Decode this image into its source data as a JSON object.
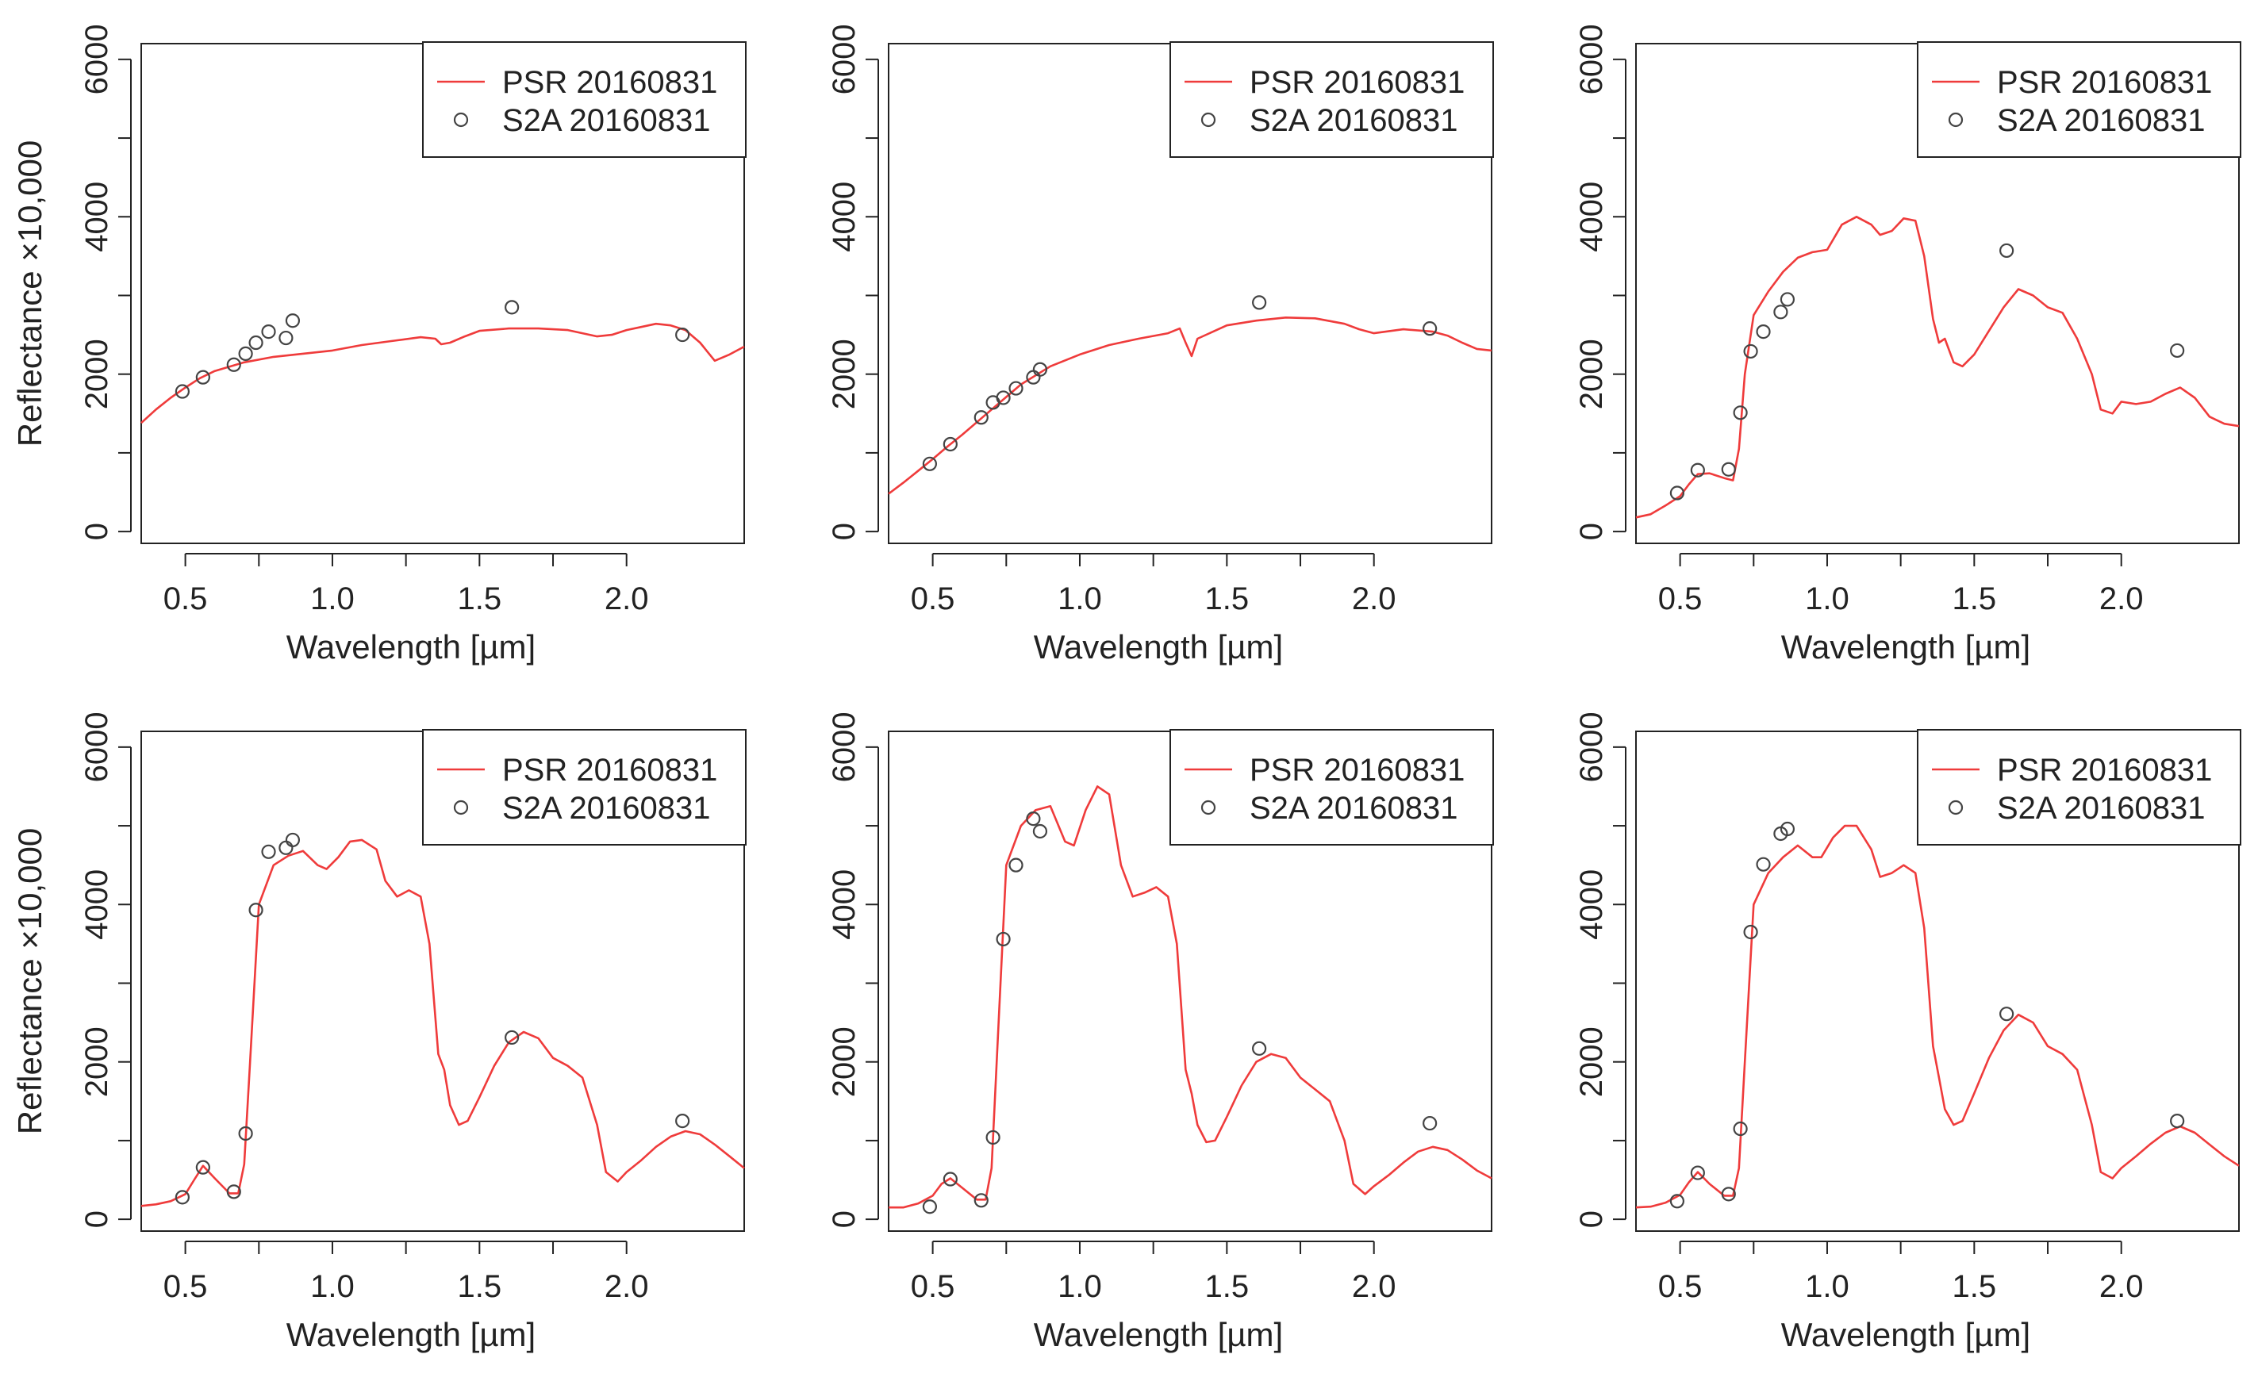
{
  "colors": {
    "psr": "#ef3b3b",
    "s2a": "#444444",
    "axis": "#222222",
    "background": "#ffffff"
  },
  "chart_data": [
    {
      "type": "line",
      "panel": 1,
      "ylabel": "Reflectance ×10,000",
      "xlabel": "Wavelength  [µm]",
      "xticks": [
        "0.5",
        "1.0",
        "1.5",
        "2.0"
      ],
      "yticks": [
        "0",
        "2000",
        "4000",
        "6000"
      ],
      "xlim": [
        0.35,
        2.4
      ],
      "ylim": [
        -150,
        6200
      ],
      "legend": [
        "PSR 20160831",
        "S2A 20160831"
      ],
      "psr": [
        [
          0.35,
          1380
        ],
        [
          0.4,
          1550
        ],
        [
          0.45,
          1700
        ],
        [
          0.5,
          1830
        ],
        [
          0.55,
          1950
        ],
        [
          0.6,
          2040
        ],
        [
          0.7,
          2150
        ],
        [
          0.8,
          2220
        ],
        [
          0.9,
          2260
        ],
        [
          1.0,
          2300
        ],
        [
          1.1,
          2370
        ],
        [
          1.2,
          2420
        ],
        [
          1.3,
          2470
        ],
        [
          1.35,
          2450
        ],
        [
          1.37,
          2380
        ],
        [
          1.4,
          2400
        ],
        [
          1.45,
          2480
        ],
        [
          1.5,
          2550
        ],
        [
          1.6,
          2580
        ],
        [
          1.7,
          2580
        ],
        [
          1.8,
          2560
        ],
        [
          1.85,
          2520
        ],
        [
          1.9,
          2480
        ],
        [
          1.95,
          2500
        ],
        [
          2.0,
          2560
        ],
        [
          2.05,
          2600
        ],
        [
          2.1,
          2640
        ],
        [
          2.15,
          2620
        ],
        [
          2.2,
          2560
        ],
        [
          2.25,
          2400
        ],
        [
          2.3,
          2170
        ],
        [
          2.35,
          2250
        ],
        [
          2.4,
          2350
        ]
      ],
      "s2a": [
        [
          0.49,
          1780
        ],
        [
          0.56,
          1960
        ],
        [
          0.665,
          2120
        ],
        [
          0.705,
          2260
        ],
        [
          0.74,
          2400
        ],
        [
          0.783,
          2540
        ],
        [
          0.842,
          2460
        ],
        [
          0.865,
          2680
        ],
        [
          1.61,
          2850
        ],
        [
          2.19,
          2500
        ]
      ]
    },
    {
      "type": "line",
      "panel": 2,
      "ylabel": "",
      "xlabel": "Wavelength  [µm]",
      "xticks": [
        "0.5",
        "1.0",
        "1.5",
        "2.0"
      ],
      "yticks": [
        "0",
        "2000",
        "4000",
        "6000"
      ],
      "xlim": [
        0.35,
        2.4
      ],
      "ylim": [
        -150,
        6200
      ],
      "legend": [
        "PSR 20160831",
        "S2A 20160831"
      ],
      "psr": [
        [
          0.35,
          480
        ],
        [
          0.4,
          620
        ],
        [
          0.45,
          770
        ],
        [
          0.5,
          920
        ],
        [
          0.55,
          1080
        ],
        [
          0.6,
          1230
        ],
        [
          0.7,
          1550
        ],
        [
          0.8,
          1870
        ],
        [
          0.9,
          2100
        ],
        [
          1.0,
          2250
        ],
        [
          1.1,
          2370
        ],
        [
          1.2,
          2450
        ],
        [
          1.3,
          2520
        ],
        [
          1.34,
          2580
        ],
        [
          1.36,
          2400
        ],
        [
          1.38,
          2230
        ],
        [
          1.4,
          2450
        ],
        [
          1.5,
          2620
        ],
        [
          1.6,
          2680
        ],
        [
          1.7,
          2720
        ],
        [
          1.8,
          2710
        ],
        [
          1.9,
          2640
        ],
        [
          1.95,
          2570
        ],
        [
          2.0,
          2520
        ],
        [
          2.1,
          2570
        ],
        [
          2.2,
          2540
        ],
        [
          2.25,
          2490
        ],
        [
          2.3,
          2400
        ],
        [
          2.35,
          2320
        ],
        [
          2.4,
          2300
        ]
      ],
      "s2a": [
        [
          0.49,
          860
        ],
        [
          0.56,
          1110
        ],
        [
          0.665,
          1450
        ],
        [
          0.705,
          1640
        ],
        [
          0.74,
          1700
        ],
        [
          0.783,
          1820
        ],
        [
          0.842,
          1960
        ],
        [
          0.865,
          2060
        ],
        [
          1.61,
          2910
        ],
        [
          2.19,
          2580
        ]
      ]
    },
    {
      "type": "line",
      "panel": 3,
      "ylabel": "",
      "xlabel": "Wavelength  [µm]",
      "xticks": [
        "0.5",
        "1.0",
        "1.5",
        "2.0"
      ],
      "yticks": [
        "0",
        "2000",
        "4000",
        "6000"
      ],
      "xlim": [
        0.35,
        2.4
      ],
      "ylim": [
        -150,
        6200
      ],
      "legend": [
        "PSR 20160831",
        "S2A 20160831"
      ],
      "psr": [
        [
          0.35,
          180
        ],
        [
          0.4,
          220
        ],
        [
          0.45,
          330
        ],
        [
          0.5,
          450
        ],
        [
          0.53,
          600
        ],
        [
          0.56,
          730
        ],
        [
          0.6,
          740
        ],
        [
          0.65,
          680
        ],
        [
          0.68,
          650
        ],
        [
          0.7,
          1050
        ],
        [
          0.72,
          2000
        ],
        [
          0.75,
          2750
        ],
        [
          0.8,
          3050
        ],
        [
          0.85,
          3300
        ],
        [
          0.9,
          3480
        ],
        [
          0.95,
          3550
        ],
        [
          1.0,
          3580
        ],
        [
          1.05,
          3900
        ],
        [
          1.1,
          4000
        ],
        [
          1.15,
          3900
        ],
        [
          1.18,
          3770
        ],
        [
          1.22,
          3820
        ],
        [
          1.26,
          3980
        ],
        [
          1.3,
          3950
        ],
        [
          1.33,
          3500
        ],
        [
          1.36,
          2700
        ],
        [
          1.38,
          2400
        ],
        [
          1.4,
          2450
        ],
        [
          1.43,
          2150
        ],
        [
          1.46,
          2100
        ],
        [
          1.5,
          2250
        ],
        [
          1.55,
          2550
        ],
        [
          1.6,
          2850
        ],
        [
          1.65,
          3080
        ],
        [
          1.7,
          3000
        ],
        [
          1.75,
          2850
        ],
        [
          1.8,
          2780
        ],
        [
          1.85,
          2450
        ],
        [
          1.9,
          2000
        ],
        [
          1.93,
          1550
        ],
        [
          1.97,
          1500
        ],
        [
          2.0,
          1650
        ],
        [
          2.05,
          1620
        ],
        [
          2.1,
          1650
        ],
        [
          2.15,
          1750
        ],
        [
          2.2,
          1830
        ],
        [
          2.25,
          1700
        ],
        [
          2.3,
          1460
        ],
        [
          2.35,
          1370
        ],
        [
          2.4,
          1340
        ]
      ],
      "s2a": [
        [
          0.49,
          490
        ],
        [
          0.56,
          780
        ],
        [
          0.665,
          790
        ],
        [
          0.705,
          1510
        ],
        [
          0.74,
          2290
        ],
        [
          0.783,
          2540
        ],
        [
          0.842,
          2790
        ],
        [
          0.865,
          2950
        ],
        [
          1.61,
          3570
        ],
        [
          2.19,
          2300
        ]
      ]
    },
    {
      "type": "line",
      "panel": 4,
      "ylabel": "Reflectance ×10,000",
      "xlabel": "Wavelength  [µm]",
      "xticks": [
        "0.5",
        "1.0",
        "1.5",
        "2.0"
      ],
      "yticks": [
        "0",
        "2000",
        "4000",
        "6000"
      ],
      "xlim": [
        0.35,
        2.4
      ],
      "ylim": [
        -150,
        6200
      ],
      "legend": [
        "PSR 20160831",
        "S2A 20160831"
      ],
      "psr": [
        [
          0.35,
          170
        ],
        [
          0.4,
          190
        ],
        [
          0.45,
          230
        ],
        [
          0.5,
          320
        ],
        [
          0.53,
          500
        ],
        [
          0.56,
          680
        ],
        [
          0.6,
          520
        ],
        [
          0.65,
          330
        ],
        [
          0.68,
          330
        ],
        [
          0.7,
          700
        ],
        [
          0.72,
          2000
        ],
        [
          0.75,
          4000
        ],
        [
          0.8,
          4500
        ],
        [
          0.85,
          4620
        ],
        [
          0.9,
          4680
        ],
        [
          0.95,
          4500
        ],
        [
          0.98,
          4450
        ],
        [
          1.02,
          4600
        ],
        [
          1.06,
          4800
        ],
        [
          1.1,
          4820
        ],
        [
          1.15,
          4700
        ],
        [
          1.18,
          4300
        ],
        [
          1.22,
          4100
        ],
        [
          1.26,
          4180
        ],
        [
          1.3,
          4100
        ],
        [
          1.33,
          3500
        ],
        [
          1.36,
          2100
        ],
        [
          1.38,
          1900
        ],
        [
          1.4,
          1450
        ],
        [
          1.43,
          1200
        ],
        [
          1.46,
          1250
        ],
        [
          1.5,
          1550
        ],
        [
          1.55,
          1950
        ],
        [
          1.6,
          2250
        ],
        [
          1.65,
          2380
        ],
        [
          1.7,
          2300
        ],
        [
          1.75,
          2050
        ],
        [
          1.8,
          1950
        ],
        [
          1.85,
          1800
        ],
        [
          1.9,
          1200
        ],
        [
          1.93,
          600
        ],
        [
          1.97,
          480
        ],
        [
          2.0,
          600
        ],
        [
          2.05,
          750
        ],
        [
          2.1,
          920
        ],
        [
          2.15,
          1050
        ],
        [
          2.2,
          1120
        ],
        [
          2.25,
          1080
        ],
        [
          2.3,
          950
        ],
        [
          2.35,
          800
        ],
        [
          2.4,
          650
        ]
      ],
      "s2a": [
        [
          0.49,
          280
        ],
        [
          0.56,
          660
        ],
        [
          0.665,
          350
        ],
        [
          0.705,
          1090
        ],
        [
          0.74,
          3930
        ],
        [
          0.783,
          4670
        ],
        [
          0.842,
          4720
        ],
        [
          0.865,
          4820
        ],
        [
          1.61,
          2310
        ],
        [
          2.19,
          1250
        ]
      ]
    },
    {
      "type": "line",
      "panel": 5,
      "ylabel": "",
      "xlabel": "Wavelength  [µm]",
      "xticks": [
        "0.5",
        "1.0",
        "1.5",
        "2.0"
      ],
      "yticks": [
        "0",
        "2000",
        "4000",
        "6000"
      ],
      "xlim": [
        0.35,
        2.4
      ],
      "ylim": [
        -150,
        6200
      ],
      "legend": [
        "PSR 20160831",
        "S2A 20160831"
      ],
      "psr": [
        [
          0.35,
          150
        ],
        [
          0.4,
          150
        ],
        [
          0.45,
          200
        ],
        [
          0.5,
          300
        ],
        [
          0.53,
          450
        ],
        [
          0.56,
          520
        ],
        [
          0.6,
          400
        ],
        [
          0.65,
          250
        ],
        [
          0.68,
          250
        ],
        [
          0.7,
          650
        ],
        [
          0.72,
          2200
        ],
        [
          0.75,
          4500
        ],
        [
          0.8,
          5000
        ],
        [
          0.85,
          5200
        ],
        [
          0.9,
          5250
        ],
        [
          0.95,
          4800
        ],
        [
          0.98,
          4750
        ],
        [
          1.02,
          5200
        ],
        [
          1.06,
          5500
        ],
        [
          1.1,
          5400
        ],
        [
          1.14,
          4500
        ],
        [
          1.18,
          4100
        ],
        [
          1.22,
          4150
        ],
        [
          1.26,
          4220
        ],
        [
          1.3,
          4100
        ],
        [
          1.33,
          3500
        ],
        [
          1.36,
          1900
        ],
        [
          1.38,
          1600
        ],
        [
          1.4,
          1200
        ],
        [
          1.43,
          980
        ],
        [
          1.46,
          1000
        ],
        [
          1.5,
          1300
        ],
        [
          1.55,
          1700
        ],
        [
          1.6,
          2000
        ],
        [
          1.65,
          2100
        ],
        [
          1.7,
          2050
        ],
        [
          1.75,
          1800
        ],
        [
          1.8,
          1650
        ],
        [
          1.85,
          1500
        ],
        [
          1.9,
          1000
        ],
        [
          1.93,
          450
        ],
        [
          1.97,
          320
        ],
        [
          2.0,
          420
        ],
        [
          2.05,
          560
        ],
        [
          2.1,
          720
        ],
        [
          2.15,
          860
        ],
        [
          2.2,
          920
        ],
        [
          2.25,
          880
        ],
        [
          2.3,
          760
        ],
        [
          2.35,
          620
        ],
        [
          2.4,
          520
        ]
      ],
      "s2a": [
        [
          0.49,
          160
        ],
        [
          0.56,
          510
        ],
        [
          0.665,
          240
        ],
        [
          0.705,
          1040
        ],
        [
          0.74,
          3560
        ],
        [
          0.783,
          4500
        ],
        [
          0.842,
          5090
        ],
        [
          0.865,
          4930
        ],
        [
          1.61,
          2170
        ],
        [
          2.19,
          1220
        ]
      ]
    },
    {
      "type": "line",
      "panel": 6,
      "ylabel": "",
      "xlabel": "Wavelength  [µm]",
      "xticks": [
        "0.5",
        "1.0",
        "1.5",
        "2.0"
      ],
      "yticks": [
        "0",
        "2000",
        "4000",
        "6000"
      ],
      "xlim": [
        0.35,
        2.4
      ],
      "ylim": [
        -150,
        6200
      ],
      "legend": [
        "PSR 20160831",
        "S2A 20160831"
      ],
      "psr": [
        [
          0.35,
          150
        ],
        [
          0.4,
          160
        ],
        [
          0.45,
          210
        ],
        [
          0.5,
          310
        ],
        [
          0.53,
          470
        ],
        [
          0.56,
          600
        ],
        [
          0.6,
          450
        ],
        [
          0.65,
          300
        ],
        [
          0.68,
          300
        ],
        [
          0.7,
          650
        ],
        [
          0.72,
          2000
        ],
        [
          0.75,
          4000
        ],
        [
          0.8,
          4400
        ],
        [
          0.85,
          4600
        ],
        [
          0.9,
          4750
        ],
        [
          0.95,
          4600
        ],
        [
          0.98,
          4600
        ],
        [
          1.02,
          4850
        ],
        [
          1.06,
          5000
        ],
        [
          1.1,
          5000
        ],
        [
          1.15,
          4700
        ],
        [
          1.18,
          4350
        ],
        [
          1.22,
          4400
        ],
        [
          1.26,
          4500
        ],
        [
          1.3,
          4400
        ],
        [
          1.33,
          3700
        ],
        [
          1.36,
          2200
        ],
        [
          1.38,
          1800
        ],
        [
          1.4,
          1400
        ],
        [
          1.43,
          1200
        ],
        [
          1.46,
          1250
        ],
        [
          1.5,
          1600
        ],
        [
          1.55,
          2050
        ],
        [
          1.6,
          2400
        ],
        [
          1.65,
          2600
        ],
        [
          1.7,
          2500
        ],
        [
          1.75,
          2200
        ],
        [
          1.8,
          2100
        ],
        [
          1.85,
          1900
        ],
        [
          1.9,
          1200
        ],
        [
          1.93,
          600
        ],
        [
          1.97,
          520
        ],
        [
          2.0,
          650
        ],
        [
          2.05,
          800
        ],
        [
          2.1,
          960
        ],
        [
          2.15,
          1100
        ],
        [
          2.2,
          1180
        ],
        [
          2.25,
          1100
        ],
        [
          2.3,
          950
        ],
        [
          2.35,
          800
        ],
        [
          2.4,
          680
        ]
      ],
      "s2a": [
        [
          0.49,
          230
        ],
        [
          0.56,
          590
        ],
        [
          0.665,
          320
        ],
        [
          0.705,
          1150
        ],
        [
          0.74,
          3650
        ],
        [
          0.783,
          4510
        ],
        [
          0.842,
          4900
        ],
        [
          0.865,
          4960
        ],
        [
          1.61,
          2610
        ],
        [
          2.19,
          1250
        ]
      ]
    }
  ]
}
